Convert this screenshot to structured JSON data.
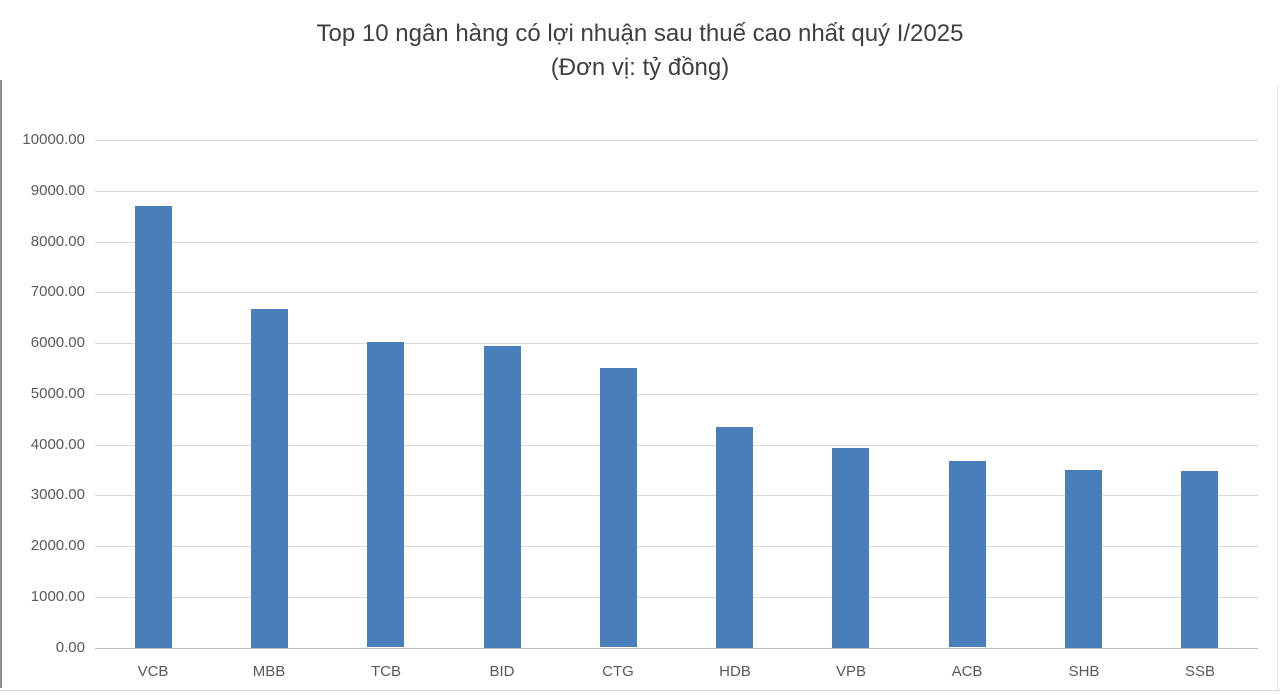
{
  "colors": {
    "bar": "#4a7ebb",
    "gridline": "#d9d9d9",
    "zero_line": "#c0c0c0",
    "axis_text": "#595959",
    "title_text": "#3f3f3f"
  },
  "chart_data": {
    "type": "bar",
    "title": "Top 10 ngân hàng có lợi nhuận sau thuế cao nhất quý I/2025",
    "subtitle": "(Đơn vị: tỷ đồng)",
    "xlabel": "",
    "ylabel": "",
    "categories": [
      "VCB",
      "MBB",
      "TCB",
      "BID",
      "CTG",
      "HDB",
      "VPB",
      "ACB",
      "SHB",
      "SSB"
    ],
    "values": [
      8700,
      6670,
      6015,
      5950,
      5500,
      4350,
      3935,
      3670,
      3500,
      3480
    ],
    "ylim": [
      0,
      10000
    ],
    "ytick_step": 1000,
    "ytick_labels": [
      "0.00",
      "1000.00",
      "2000.00",
      "3000.00",
      "4000.00",
      "5000.00",
      "6000.00",
      "7000.00",
      "8000.00",
      "9000.00",
      "10000.00"
    ],
    "grid": true,
    "legend": false
  }
}
